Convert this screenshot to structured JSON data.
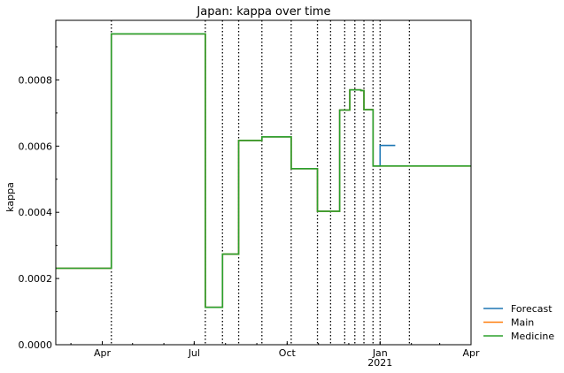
{
  "chart_data": {
    "type": "line",
    "title": "Japan: kappa over time",
    "xlabel": "",
    "ylabel": "kappa",
    "xlim": [
      "2020-02-15",
      "2021-04-01"
    ],
    "ylim": [
      0,
      0.00098
    ],
    "x_ticks": [
      {
        "date": "2020-04-01",
        "label": "Apr"
      },
      {
        "date": "2020-07-01",
        "label": "Jul"
      },
      {
        "date": "2020-10-01",
        "label": "Oct"
      },
      {
        "date": "2021-01-01",
        "label": "Jan",
        "sublabel": "2021"
      },
      {
        "date": "2021-04-01",
        "label": "Apr"
      }
    ],
    "y_ticks": [
      {
        "value": 0,
        "label": "0.0000"
      },
      {
        "value": 0.0002,
        "label": "0.0002"
      },
      {
        "value": 0.0004,
        "label": "0.0004"
      },
      {
        "value": 0.0006,
        "label": "0.0006"
      },
      {
        "value": 0.0008,
        "label": "0.0008"
      }
    ],
    "change_dates": [
      "2020-04-10",
      "2020-07-12",
      "2020-07-29",
      "2020-08-14",
      "2020-09-06",
      "2020-10-05",
      "2020-10-31",
      "2020-11-13",
      "2020-11-27",
      "2020-12-07",
      "2020-12-16",
      "2020-12-25",
      "2021-01-01",
      "2021-01-30"
    ],
    "legend_position": "outside-bottom-right",
    "series": [
      {
        "name": "Forecast",
        "color": "#1f77b4",
        "x": [
          "2020-02-15",
          "2020-04-10",
          "2020-04-10",
          "2020-07-12",
          "2020-07-12",
          "2020-07-29",
          "2020-07-29",
          "2020-08-14",
          "2020-08-14",
          "2020-09-06",
          "2020-09-06",
          "2020-10-05",
          "2020-10-05",
          "2020-10-31",
          "2020-10-31",
          "2020-11-22",
          "2020-11-22",
          "2020-12-02",
          "2020-12-02",
          "2020-12-13",
          "2020-12-13",
          "2020-12-16",
          "2020-12-16",
          "2020-12-25",
          "2020-12-25",
          "2021-01-01",
          "2021-01-01",
          "2021-01-16"
        ],
        "y": [
          0.000231,
          0.000231,
          0.000939,
          0.000939,
          0.000113,
          0.000113,
          0.000274,
          0.000274,
          0.000617,
          0.000617,
          0.000628,
          0.000628,
          0.000532,
          0.000532,
          0.000403,
          0.000403,
          0.000709,
          0.000709,
          0.00077,
          0.00077,
          0.000768,
          0.000768,
          0.00071,
          0.00071,
          0.00054,
          0.00054,
          0.000602,
          0.000602
        ]
      },
      {
        "name": "Main",
        "color": "#ff7f0e",
        "x": [
          "2020-02-15",
          "2020-04-10",
          "2020-04-10",
          "2020-07-12",
          "2020-07-12",
          "2020-07-29",
          "2020-07-29",
          "2020-08-14",
          "2020-08-14",
          "2020-09-06",
          "2020-09-06",
          "2020-10-05",
          "2020-10-05",
          "2020-10-31",
          "2020-10-31",
          "2020-11-22",
          "2020-11-22",
          "2020-12-02",
          "2020-12-02",
          "2020-12-13",
          "2020-12-13",
          "2020-12-16",
          "2020-12-16",
          "2020-12-25",
          "2020-12-25",
          "2021-04-01"
        ],
        "y": [
          0.000231,
          0.000231,
          0.000939,
          0.000939,
          0.000113,
          0.000113,
          0.000274,
          0.000274,
          0.000617,
          0.000617,
          0.000628,
          0.000628,
          0.000532,
          0.000532,
          0.000403,
          0.000403,
          0.000709,
          0.000709,
          0.00077,
          0.00077,
          0.000768,
          0.000768,
          0.00071,
          0.00071,
          0.00054,
          0.00054
        ]
      },
      {
        "name": "Medicine",
        "color": "#2ca02c",
        "x": [
          "2020-02-15",
          "2020-04-10",
          "2020-04-10",
          "2020-07-12",
          "2020-07-12",
          "2020-07-29",
          "2020-07-29",
          "2020-08-14",
          "2020-08-14",
          "2020-09-06",
          "2020-09-06",
          "2020-10-05",
          "2020-10-05",
          "2020-10-31",
          "2020-10-31",
          "2020-11-22",
          "2020-11-22",
          "2020-12-02",
          "2020-12-02",
          "2020-12-13",
          "2020-12-13",
          "2020-12-16",
          "2020-12-16",
          "2020-12-25",
          "2020-12-25",
          "2021-04-01"
        ],
        "y": [
          0.000231,
          0.000231,
          0.000939,
          0.000939,
          0.000113,
          0.000113,
          0.000274,
          0.000274,
          0.000617,
          0.000617,
          0.000628,
          0.000628,
          0.000532,
          0.000532,
          0.000403,
          0.000403,
          0.000709,
          0.000709,
          0.00077,
          0.00077,
          0.000768,
          0.000768,
          0.00071,
          0.00071,
          0.00054,
          0.00054
        ]
      }
    ]
  }
}
